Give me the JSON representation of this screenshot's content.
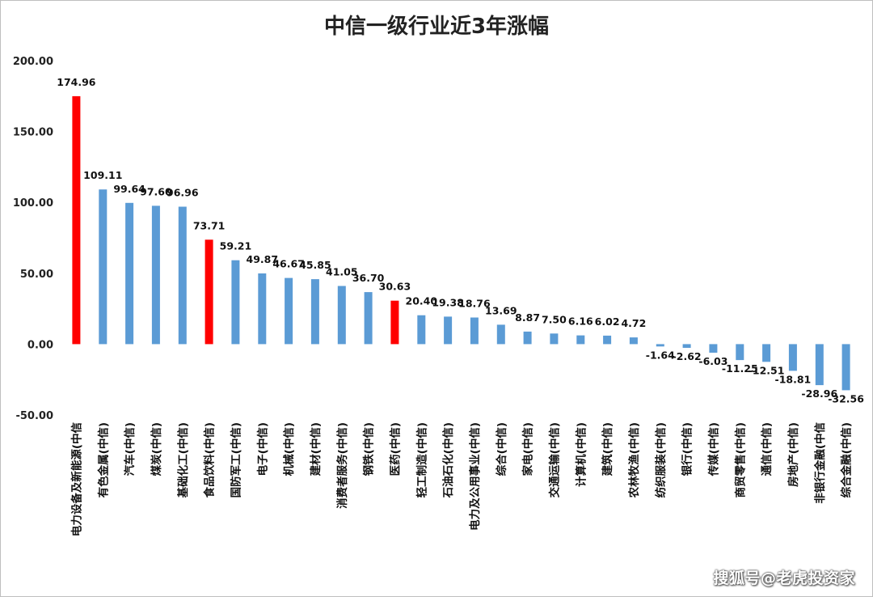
{
  "watermark": "搜狐号@老虎投资家",
  "chart_data": {
    "type": "bar",
    "title": "中信一级行业近3年涨幅",
    "xlabel": "",
    "ylabel": "",
    "ylim": [
      -50,
      200
    ],
    "yticks": [
      "200.00",
      "150.00",
      "100.00",
      "50.00",
      "0.00",
      "-50.00"
    ],
    "ytick_values": [
      200,
      150,
      100,
      50,
      0,
      -50
    ],
    "grid": false,
    "legend": "none",
    "colors": {
      "default": "#5b9bd5",
      "highlight": "#ff0000"
    },
    "categories": [
      "电力设备及新能源(中信",
      "有色金属(中信)",
      "汽车(中信)",
      "煤炭(中信)",
      "基础化工(中信)",
      "食品饮料(中信)",
      "国防军工(中信)",
      "电子(中信)",
      "机械(中信)",
      "建材(中信)",
      "消费者服务(中信)",
      "钢铁(中信)",
      "医药(中信)",
      "轻工制造(中信)",
      "石油石化(中信)",
      "电力及公用事业(中信)",
      "综合(中信)",
      "家电(中信)",
      "交通运输(中信)",
      "计算机(中信)",
      "建筑(中信)",
      "农林牧渔(中信)",
      "纺织服装(中信)",
      "银行(中信)",
      "传媒(中信)",
      "商贸零售(中信)",
      "通信(中信)",
      "房地产(中信)",
      "非银行金融(中信",
      "综合金融(中信)"
    ],
    "values": [
      174.96,
      109.11,
      99.64,
      97.6,
      96.96,
      73.71,
      59.21,
      49.87,
      46.67,
      45.85,
      41.05,
      36.7,
      30.63,
      20.4,
      19.38,
      18.76,
      13.69,
      8.87,
      7.5,
      6.16,
      6.02,
      4.72,
      -1.64,
      -2.62,
      -6.03,
      -11.25,
      -12.51,
      -18.81,
      -28.96,
      -32.56
    ],
    "data_labels": [
      "174.96",
      "109.11",
      "99.64",
      "97.60",
      "96.96",
      "73.71",
      "59.21",
      "49.87",
      "46.67",
      "45.85",
      "41.05",
      "36.70",
      "30.63",
      "20.40",
      "19.38",
      "18.76",
      "13.69",
      "8.87",
      "7.50",
      "6.16",
      "6.02",
      "4.72",
      "-1.64",
      "-2.62",
      "-6.03",
      "-11.25",
      "-12.51",
      "-18.81",
      "-28.96",
      "-32.56"
    ],
    "highlighted": [
      "电力设备及新能源(中信",
      "食品饮料(中信)",
      "医药(中信)"
    ]
  }
}
